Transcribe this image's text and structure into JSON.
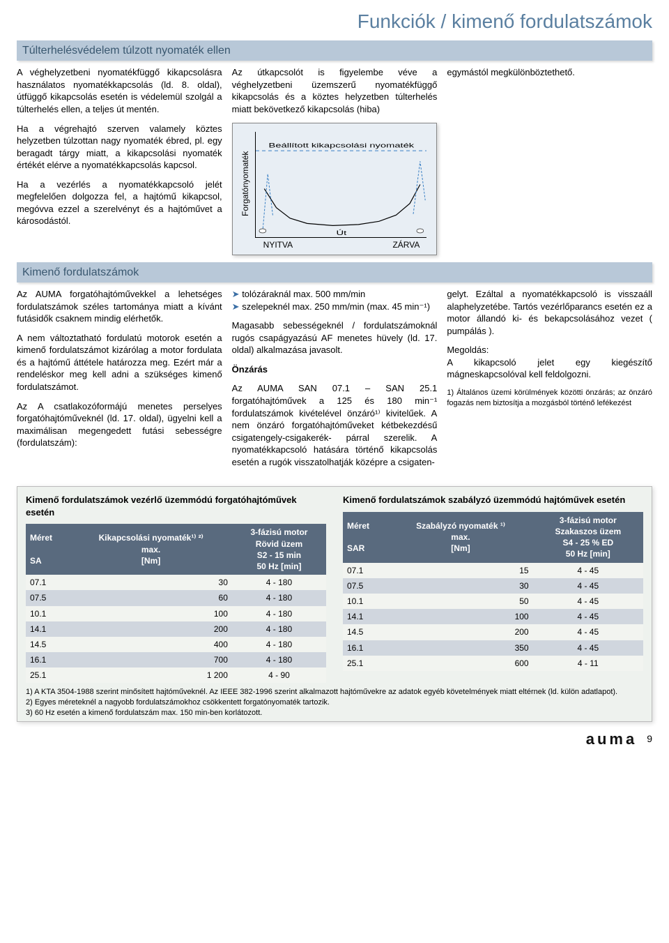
{
  "page": {
    "title": "Funkciók / kimenő fordulatszámok",
    "footer_brand": "auma",
    "footer_page": "9"
  },
  "section1": {
    "title": "Túlterhelésvédelem túlzott nyomaték ellen",
    "left_p1": "A véghelyzetbeni nyomatékfüggő kikapcsolásra használatos nyomatékkapcsolás (ld. 8. oldal), útfüggő kikapcsolás esetén is védelemül szolgál a túlterhelés ellen, a teljes út mentén.",
    "left_p2": "Ha a végrehajtó szerven valamely köztes helyzetben túlzottan nagy nyomaték ébred, pl. egy beragadt tárgy miatt, a kikapcsolási nyomaték értékét elérve a nyomatékkapcsolás kapcsol.",
    "left_p3": "Ha a vezérlés a nyomatékkapcsoló jelét megfelelően dolgozza fel, a hajtómű kikapcsol, megóvva ezzel a szerelvényt és a hajtóművet a károsodástól.",
    "mid_p1": "Az útkapcsolót is figyelembe véve a véghelyzetbeni üzemszerű nyomatékfüggő kikapcsolás és a köztes helyzetben túlterhelés miatt bekövetkező kikapcsolás (hiba)",
    "right_p1": "egymástól megkülönböztethető."
  },
  "chart": {
    "type": "line",
    "ylabel": "Forgatónyomaték",
    "xlabel_center": "Út",
    "xlabel_left": "NYITVA",
    "xlabel_right": "ZÁRVA",
    "legend_label": "Beállított kikapcsolási nyomaték",
    "bg_color": "#e8eef4",
    "axis_color": "#000000",
    "legend_line_color": "#387fc4",
    "legend_line_dash": "5,4",
    "curve_color": "#000000",
    "xlim": [
      0,
      100
    ],
    "ylim": [
      0,
      100
    ],
    "hline_y": 82,
    "curve_points": [
      [
        5,
        46
      ],
      [
        12,
        28
      ],
      [
        20,
        18
      ],
      [
        30,
        13
      ],
      [
        45,
        11
      ],
      [
        60,
        12
      ],
      [
        72,
        15
      ],
      [
        82,
        21
      ],
      [
        90,
        32
      ],
      [
        96,
        50
      ]
    ],
    "spike1_points": [
      [
        4,
        5
      ],
      [
        7,
        60
      ],
      [
        10,
        20
      ]
    ],
    "spike2_points": [
      [
        92,
        22
      ],
      [
        96,
        72
      ],
      [
        99,
        35
      ]
    ]
  },
  "section2": {
    "title": "Kimenő fordulatszámok",
    "left_p1": "Az AUMA forgatóhajtóművekkel a lehetséges fordulatszámok széles tartománya miatt a kívánt futásidők csaknem mindig elérhetők.",
    "left_p2": "A nem változtatható fordulatú motorok esetén a kimenő fordulatszámot kizárólag a motor fordulata és a hajtómű áttétele határozza meg. Ezért már a rendeléskor meg kell adni a szükséges kimenő fordulatszámot.",
    "left_p3": "Az A csatlakozóformájú menetes perselyes forgatóhajtóműveknél (ld. 17. oldal), ügyelni kell a maximálisan megengedett futási sebességre (fordulatszám):",
    "mid_bullets": [
      "tolózáraknál max. 500 mm/min",
      "szelepeknél max. 250 mm/min (max. 45 min⁻¹)"
    ],
    "mid_p1": "Magasabb sebességeknél / fordulatszámoknál rugós csapágyazású AF menetes hüvely (ld. 17. oldal) alkalmazása javasolt.",
    "mid_h": "Önzárás",
    "mid_p2": "Az AUMA SAN 07.1 – SAN 25.1 forgatóhajtóművek a 125 és 180 min⁻¹ fordulatszámok kivételével önzáró¹⁾ kivitelűek. A nem önzáró forgatóhajtóműveket kétbekezdésű csigatengely-csigakerék- párral szerelik. A nyomatékkapcsoló hatására történő kikapcsolás esetén a rugók visszatolhatják középre a csigaten-",
    "right_p1": "gelyt. Ezáltal a nyomatékkapcsoló is visszaáll alaphelyzetébe. Tartós vezérlőparancs esetén ez a motor állandó ki- és bekapcsolásához vezet ( pumpálás ).",
    "right_p2": "Megoldás:\nA kikapcsoló jelet egy kiegészítő mágneskapcsolóval kell feldolgozni.",
    "right_fn": "1) Általános üzemi körülmények közötti önzárás; az önzáró fogazás nem biztosítja a mozgásból történő lefékezést"
  },
  "tables": {
    "left": {
      "title": "Kimenő fordulatszámok vezérlő üzemmódú forgatóhajtóművek esetén",
      "head_col1_a": "Méret",
      "head_col1_b": "SA",
      "head_col2_a": "Kikapcsolási nyomaték¹⁾ ²⁾",
      "head_col2_b": "max.",
      "head_col2_c": "[Nm]",
      "head_col3_a": "3-fázisú motor",
      "head_col3_b": "Rövid üzem",
      "head_col3_c": "S2 - 15 min",
      "head_col3_d": "50 Hz [min]",
      "rows": [
        [
          "07.1",
          "30",
          "4   -   180"
        ],
        [
          "07.5",
          "60",
          "4   -   180"
        ],
        [
          "10.1",
          "100",
          "4   -   180"
        ],
        [
          "14.1",
          "200",
          "4   -   180"
        ],
        [
          "14.5",
          "400",
          "4   -   180"
        ],
        [
          "16.1",
          "700",
          "4   -   180"
        ],
        [
          "25.1",
          "1 200",
          "4   -    90"
        ]
      ]
    },
    "right": {
      "title": "Kimenő fordulatszámok szabályzó üzemmódú hajtóművek esetén",
      "head_col1_a": "Méret",
      "head_col1_b": "SAR",
      "head_col2_a": "Szabályzó nyomaték ¹⁾",
      "head_col2_b": "max.",
      "head_col2_c": "[Nm]",
      "head_col3_a": "3-fázisú motor",
      "head_col3_b": "Szakaszos üzem",
      "head_col3_c": "S4 - 25 % ED",
      "head_col3_d": "50 Hz [min]",
      "rows": [
        [
          "07.1",
          "15",
          "4   -   45"
        ],
        [
          "07.5",
          "30",
          "4   -   45"
        ],
        [
          "10.1",
          "50",
          "4   -   45"
        ],
        [
          "14.1",
          "100",
          "4   -   45"
        ],
        [
          "14.5",
          "200",
          "4   -   45"
        ],
        [
          "16.1",
          "350",
          "4   -   45"
        ],
        [
          "25.1",
          "600",
          "4   -   11"
        ]
      ]
    },
    "footnotes": [
      "1) A KTA 3504-1988 szerint minősített hajtóműveknél. Az IEEE 382-1996 szerint alkalmazott hajtóművekre az adatok egyéb követelmények miatt eltérnek (ld. külön adatlapot).",
      "2) Egyes méreteknél a nagyobb fordulatszámokhoz csökkentett forgatónyomaték tartozik.",
      "3) 60 Hz esetén a kimenő fordulatszám max. 150 min-ben korlátozott."
    ]
  }
}
